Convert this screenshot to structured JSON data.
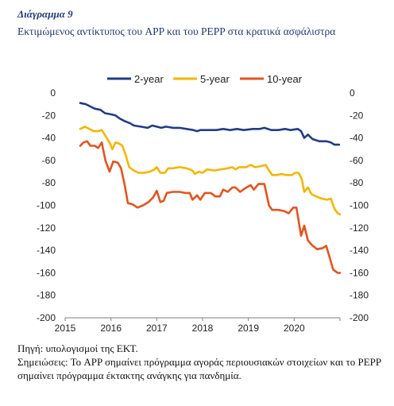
{
  "heading": "Διάγραμμα 9",
  "title": "Εκτιμώμενος αντίκτυπος του APP και του PEPP στα κρατικά ασφάλιστρα",
  "source": "Πηγή: υπολογισμοί της ΕΚΤ.",
  "notes": "Σημειώσεις: Το APP σημαίνει πρόγραμμα αγοράς περιουσιακών στοιχείων και το PEPP σημαίνει πρόγραμμα έκτακτης ανάγκης για πανδημία.",
  "chart_data": {
    "type": "line",
    "title": "",
    "xlabel": "",
    "ylabel": "",
    "xlim": [
      2015.0,
      2021.0
    ],
    "ylim": [
      -200,
      0
    ],
    "x_ticks": [
      "2015",
      "2016",
      "2017",
      "2018",
      "2019",
      "2020"
    ],
    "y_ticks": [
      "0",
      "-20",
      "-40",
      "-60",
      "-80",
      "-100",
      "-120",
      "-140",
      "-160",
      "-180",
      "-200"
    ],
    "legend_position": "top",
    "grid": false,
    "series": [
      {
        "name": "2-year",
        "color": "#1f3c88",
        "points": [
          [
            2015.33,
            -9
          ],
          [
            2015.45,
            -10
          ],
          [
            2015.55,
            -12
          ],
          [
            2015.65,
            -14
          ],
          [
            2015.77,
            -15
          ],
          [
            2015.87,
            -18
          ],
          [
            2016.0,
            -19
          ],
          [
            2016.1,
            -20
          ],
          [
            2016.2,
            -23
          ],
          [
            2016.3,
            -25
          ],
          [
            2016.42,
            -27
          ],
          [
            2016.5,
            -29
          ],
          [
            2016.65,
            -30
          ],
          [
            2016.8,
            -31
          ],
          [
            2016.9,
            -29
          ],
          [
            2017.0,
            -30
          ],
          [
            2017.1,
            -31
          ],
          [
            2017.2,
            -30
          ],
          [
            2017.35,
            -31
          ],
          [
            2017.5,
            -31
          ],
          [
            2017.65,
            -32
          ],
          [
            2017.8,
            -33
          ],
          [
            2017.88,
            -34
          ],
          [
            2017.95,
            -33
          ],
          [
            2018.1,
            -33
          ],
          [
            2018.3,
            -33
          ],
          [
            2018.45,
            -32
          ],
          [
            2018.6,
            -33
          ],
          [
            2018.75,
            -32
          ],
          [
            2018.9,
            -33
          ],
          [
            2019.1,
            -32
          ],
          [
            2019.25,
            -32
          ],
          [
            2019.35,
            -31
          ],
          [
            2019.5,
            -33
          ],
          [
            2019.65,
            -33
          ],
          [
            2019.8,
            -32
          ],
          [
            2019.92,
            -33
          ],
          [
            2020.08,
            -32
          ],
          [
            2020.15,
            -34
          ],
          [
            2020.22,
            -40
          ],
          [
            2020.3,
            -37
          ],
          [
            2020.4,
            -41
          ],
          [
            2020.55,
            -43
          ],
          [
            2020.7,
            -43
          ],
          [
            2020.8,
            -44
          ],
          [
            2020.88,
            -46
          ],
          [
            2020.98,
            -46
          ]
        ]
      },
      {
        "name": "5-year",
        "color": "#f7b500",
        "points": [
          [
            2015.33,
            -32
          ],
          [
            2015.43,
            -30
          ],
          [
            2015.53,
            -32
          ],
          [
            2015.62,
            -34
          ],
          [
            2015.72,
            -34
          ],
          [
            2015.8,
            -33
          ],
          [
            2015.88,
            -38
          ],
          [
            2015.98,
            -45
          ],
          [
            2016.03,
            -50
          ],
          [
            2016.1,
            -44
          ],
          [
            2016.18,
            -45
          ],
          [
            2016.25,
            -47
          ],
          [
            2016.32,
            -55
          ],
          [
            2016.4,
            -66
          ],
          [
            2016.5,
            -69
          ],
          [
            2016.6,
            -71
          ],
          [
            2016.72,
            -71
          ],
          [
            2016.85,
            -70
          ],
          [
            2016.95,
            -68
          ],
          [
            2017.0,
            -66
          ],
          [
            2017.08,
            -71
          ],
          [
            2017.18,
            -71
          ],
          [
            2017.25,
            -67
          ],
          [
            2017.35,
            -67
          ],
          [
            2017.5,
            -66
          ],
          [
            2017.65,
            -67
          ],
          [
            2017.78,
            -69
          ],
          [
            2017.83,
            -72
          ],
          [
            2017.92,
            -70
          ],
          [
            2018.0,
            -71
          ],
          [
            2018.1,
            -68
          ],
          [
            2018.25,
            -69
          ],
          [
            2018.4,
            -68
          ],
          [
            2018.55,
            -67
          ],
          [
            2018.65,
            -66
          ],
          [
            2018.72,
            -68
          ],
          [
            2018.8,
            -66
          ],
          [
            2018.95,
            -66
          ],
          [
            2019.05,
            -64
          ],
          [
            2019.15,
            -66
          ],
          [
            2019.28,
            -65
          ],
          [
            2019.38,
            -64
          ],
          [
            2019.45,
            -69
          ],
          [
            2019.52,
            -73
          ],
          [
            2019.62,
            -73
          ],
          [
            2019.72,
            -72
          ],
          [
            2019.82,
            -73
          ],
          [
            2019.95,
            -73
          ],
          [
            2020.02,
            -71
          ],
          [
            2020.1,
            -71
          ],
          [
            2020.17,
            -77
          ],
          [
            2020.22,
            -88
          ],
          [
            2020.3,
            -84
          ],
          [
            2020.38,
            -90
          ],
          [
            2020.48,
            -92
          ],
          [
            2020.6,
            -94
          ],
          [
            2020.72,
            -95
          ],
          [
            2020.8,
            -94
          ],
          [
            2020.88,
            -103
          ],
          [
            2020.95,
            -107
          ],
          [
            2021.0,
            -108
          ]
        ]
      },
      {
        "name": "10-year",
        "color": "#e8521c",
        "points": [
          [
            2015.33,
            -47
          ],
          [
            2015.4,
            -44
          ],
          [
            2015.48,
            -43
          ],
          [
            2015.55,
            -47
          ],
          [
            2015.65,
            -47
          ],
          [
            2015.72,
            -49
          ],
          [
            2015.8,
            -44
          ],
          [
            2015.88,
            -60
          ],
          [
            2015.97,
            -70
          ],
          [
            2016.05,
            -61
          ],
          [
            2016.15,
            -62
          ],
          [
            2016.22,
            -67
          ],
          [
            2016.3,
            -82
          ],
          [
            2016.37,
            -98
          ],
          [
            2016.47,
            -99
          ],
          [
            2016.58,
            -102
          ],
          [
            2016.7,
            -100
          ],
          [
            2016.82,
            -97
          ],
          [
            2016.92,
            -93
          ],
          [
            2017.0,
            -87
          ],
          [
            2017.08,
            -97
          ],
          [
            2017.15,
            -96
          ],
          [
            2017.22,
            -89
          ],
          [
            2017.35,
            -88
          ],
          [
            2017.5,
            -88
          ],
          [
            2017.62,
            -89
          ],
          [
            2017.72,
            -89
          ],
          [
            2017.78,
            -95
          ],
          [
            2017.88,
            -91
          ],
          [
            2017.95,
            -95
          ],
          [
            2018.05,
            -89
          ],
          [
            2018.18,
            -89
          ],
          [
            2018.28,
            -92
          ],
          [
            2018.38,
            -92
          ],
          [
            2018.45,
            -86
          ],
          [
            2018.55,
            -88
          ],
          [
            2018.65,
            -84
          ],
          [
            2018.72,
            -84
          ],
          [
            2018.82,
            -88
          ],
          [
            2018.92,
            -85
          ],
          [
            2019.05,
            -82
          ],
          [
            2019.12,
            -86
          ],
          [
            2019.22,
            -81
          ],
          [
            2019.35,
            -81
          ],
          [
            2019.45,
            -100
          ],
          [
            2019.52,
            -104
          ],
          [
            2019.65,
            -104
          ],
          [
            2019.78,
            -105
          ],
          [
            2019.88,
            -107
          ],
          [
            2019.98,
            -102
          ],
          [
            2020.05,
            -102
          ],
          [
            2020.15,
            -127
          ],
          [
            2020.22,
            -118
          ],
          [
            2020.3,
            -131
          ],
          [
            2020.38,
            -135
          ],
          [
            2020.5,
            -139
          ],
          [
            2020.62,
            -138
          ],
          [
            2020.7,
            -136
          ],
          [
            2020.78,
            -147
          ],
          [
            2020.85,
            -157
          ],
          [
            2020.95,
            -160
          ],
          [
            2021.0,
            -160
          ]
        ]
      }
    ]
  }
}
